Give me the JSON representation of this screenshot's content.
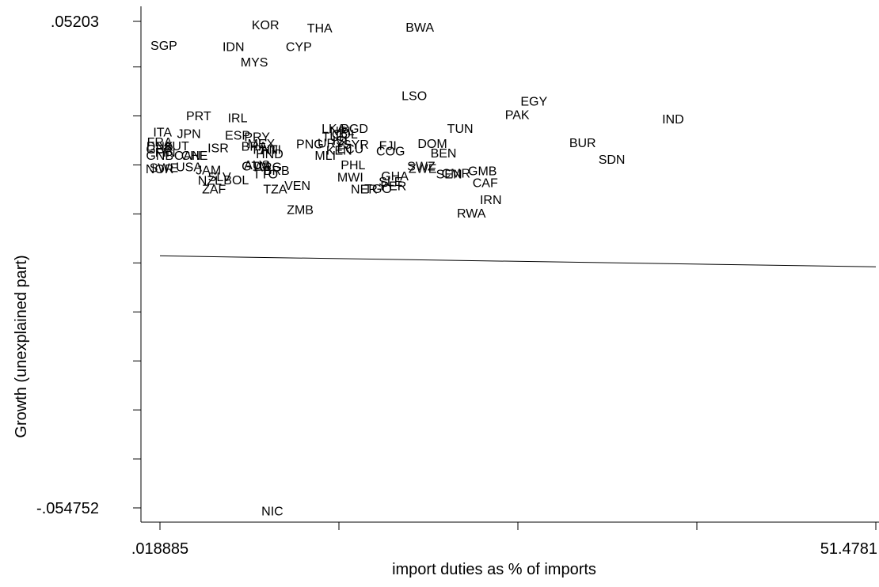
{
  "chart_data": {
    "type": "scatter",
    "xlabel": "import duties as % of imports",
    "ylabel": "Growth (unexplained part)",
    "xlim": [
      0.018885,
      51.4781
    ],
    "ylim": [
      -0.054752,
      0.05203
    ],
    "x_ticks": [
      0.018885,
      12.88369,
      25.74849,
      38.6133,
      51.4781
    ],
    "x_tick_labels": [
      ".018885",
      "",
      "",
      "",
      "51.4781"
    ],
    "y_ticks": [
      -0.054752,
      -0.043999,
      -0.033246,
      -0.022492,
      -0.011739,
      -0.000986,
      0.009767,
      0.02052,
      0.031274,
      0.042027,
      0.05203
    ],
    "y_tick_labels": [
      "-.054752",
      "",
      "",
      "",
      "",
      "",
      "",
      "",
      "",
      "",
      ".05203"
    ],
    "grid": false,
    "fit_line": {
      "x": [
        0.018885,
        51.4781
      ],
      "y": [
        0.00056,
        -0.00184
      ]
    },
    "points": [
      {
        "label": "KOR",
        "x": 7.6,
        "y": 0.0513
      },
      {
        "label": "THA",
        "x": 11.5,
        "y": 0.0506
      },
      {
        "label": "BWA",
        "x": 18.7,
        "y": 0.0508
      },
      {
        "label": "SGP",
        "x": 0.3,
        "y": 0.0468
      },
      {
        "label": "IDN",
        "x": 5.3,
        "y": 0.0466
      },
      {
        "label": "CYP",
        "x": 10.0,
        "y": 0.0466
      },
      {
        "label": "MYS",
        "x": 6.8,
        "y": 0.0432
      },
      {
        "label": "LSO",
        "x": 18.3,
        "y": 0.0358
      },
      {
        "label": "EGY",
        "x": 26.9,
        "y": 0.0346
      },
      {
        "label": "PAK",
        "x": 25.7,
        "y": 0.0316
      },
      {
        "label": "IND",
        "x": 36.9,
        "y": 0.0307
      },
      {
        "label": "PRT",
        "x": 2.8,
        "y": 0.0314
      },
      {
        "label": "IRL",
        "x": 5.6,
        "y": 0.0309
      },
      {
        "label": "LKA",
        "x": 12.5,
        "y": 0.0286
      },
      {
        "label": "BGD",
        "x": 14.0,
        "y": 0.0286
      },
      {
        "label": "TUN",
        "x": 21.6,
        "y": 0.0286
      },
      {
        "label": "NPL",
        "x": 13.1,
        "y": 0.0281
      },
      {
        "label": "ITA",
        "x": 0.2,
        "y": 0.0278
      },
      {
        "label": "JPN",
        "x": 2.1,
        "y": 0.0275
      },
      {
        "label": "COL",
        "x": 13.3,
        "y": 0.0274
      },
      {
        "label": "ESP",
        "x": 5.6,
        "y": 0.0271
      },
      {
        "label": "TUR",
        "x": 12.6,
        "y": 0.0268
      },
      {
        "label": "PRY",
        "x": 7.0,
        "y": 0.0268
      },
      {
        "label": "ISL",
        "x": 13.1,
        "y": 0.026
      },
      {
        "label": "FRA",
        "x": 0.0,
        "y": 0.0256
      },
      {
        "label": "DOM",
        "x": 19.6,
        "y": 0.0253
      },
      {
        "label": "BUR",
        "x": 30.4,
        "y": 0.0255
      },
      {
        "label": "URY",
        "x": 12.3,
        "y": 0.0254
      },
      {
        "label": "MEX",
        "x": 7.3,
        "y": 0.0253
      },
      {
        "label": "PNG",
        "x": 10.8,
        "y": 0.0252
      },
      {
        "label": "SYR",
        "x": 14.1,
        "y": 0.0251
      },
      {
        "label": "FJI",
        "x": 16.4,
        "y": 0.0249
      },
      {
        "label": "DNK",
        "x": 0.0,
        "y": 0.0247
      },
      {
        "label": "AUT",
        "x": 1.2,
        "y": 0.0248
      },
      {
        "label": "BRA",
        "x": 6.8,
        "y": 0.0247
      },
      {
        "label": "ISR",
        "x": 4.2,
        "y": 0.0243
      },
      {
        "label": "ECU",
        "x": 13.7,
        "y": 0.0242
      },
      {
        "label": "PAN",
        "x": 7.6,
        "y": 0.024
      },
      {
        "label": "GBR",
        "x": 0.0,
        "y": 0.0241
      },
      {
        "label": "HTI",
        "x": 8.0,
        "y": 0.024
      },
      {
        "label": "KEN",
        "x": 12.9,
        "y": 0.0238
      },
      {
        "label": "COG",
        "x": 16.6,
        "y": 0.0236
      },
      {
        "label": "FIN",
        "x": 0.4,
        "y": 0.0234
      },
      {
        "label": "BEN",
        "x": 20.4,
        "y": 0.0232
      },
      {
        "label": "HND",
        "x": 7.9,
        "y": 0.023
      },
      {
        "label": "GNB",
        "x": 0.0,
        "y": 0.0227
      },
      {
        "label": "CAN",
        "x": 2.0,
        "y": 0.0227
      },
      {
        "label": "CHE",
        "x": 2.5,
        "y": 0.0227
      },
      {
        "label": "MLI",
        "x": 11.9,
        "y": 0.0227
      },
      {
        "label": "SDN",
        "x": 32.5,
        "y": 0.0218
      },
      {
        "label": "PHL",
        "x": 13.9,
        "y": 0.0206
      },
      {
        "label": "AUS",
        "x": 7.0,
        "y": 0.0206
      },
      {
        "label": "SWZ",
        "x": 18.8,
        "y": 0.0203
      },
      {
        "label": "USA",
        "x": 2.1,
        "y": 0.0202
      },
      {
        "label": "GTM",
        "x": 6.9,
        "y": 0.0203
      },
      {
        "label": "ARG",
        "x": 7.8,
        "y": 0.0202
      },
      {
        "label": "SWE",
        "x": 0.3,
        "y": 0.02
      },
      {
        "label": "ZWE",
        "x": 18.9,
        "y": 0.0198
      },
      {
        "label": "NOR",
        "x": 0.0,
        "y": 0.0197
      },
      {
        "label": "JAM",
        "x": 3.5,
        "y": 0.0195
      },
      {
        "label": "BRB",
        "x": 8.4,
        "y": 0.0194
      },
      {
        "label": "GMB",
        "x": 23.2,
        "y": 0.0193
      },
      {
        "label": "CMR",
        "x": 21.3,
        "y": 0.0188
      },
      {
        "label": "TTO",
        "x": 7.6,
        "y": 0.0186
      },
      {
        "label": "SEN",
        "x": 20.8,
        "y": 0.0186
      },
      {
        "label": "GHA",
        "x": 16.9,
        "y": 0.0182
      },
      {
        "label": "MWI",
        "x": 13.7,
        "y": 0.0179
      },
      {
        "label": "SLV",
        "x": 4.3,
        "y": 0.018
      },
      {
        "label": "NZL",
        "x": 3.6,
        "y": 0.0172
      },
      {
        "label": "BOL",
        "x": 5.5,
        "y": 0.0173
      },
      {
        "label": "SLE",
        "x": 16.6,
        "y": 0.017
      },
      {
        "label": "CAF",
        "x": 23.4,
        "y": 0.0167
      },
      {
        "label": "VEN",
        "x": 9.9,
        "y": 0.0161
      },
      {
        "label": "PER",
        "x": 16.8,
        "y": 0.016
      },
      {
        "label": "ZAF",
        "x": 3.9,
        "y": 0.0153
      },
      {
        "label": "TZA",
        "x": 8.3,
        "y": 0.0153
      },
      {
        "label": "NER",
        "x": 14.7,
        "y": 0.0153
      },
      {
        "label": "TGO",
        "x": 15.7,
        "y": 0.0154
      },
      {
        "label": "IRN",
        "x": 23.8,
        "y": 0.013
      },
      {
        "label": "ZMB",
        "x": 10.1,
        "y": 0.0108
      },
      {
        "label": "RWA",
        "x": 22.4,
        "y": 0.01
      },
      {
        "label": "NIC",
        "x": 8.1,
        "y": -0.0554
      }
    ]
  }
}
